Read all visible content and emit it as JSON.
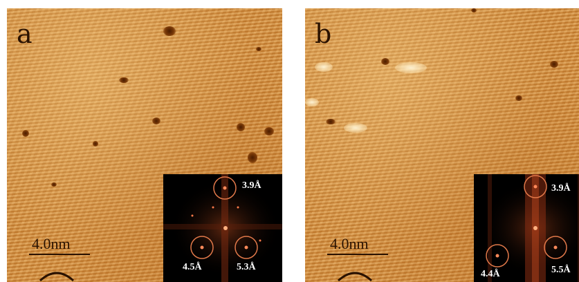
{
  "panels": [
    {
      "label": "a",
      "scale_bar": "4.0nm",
      "fft_labels": [
        "3.9Å",
        "4.5Å",
        "5.3Å"
      ]
    },
    {
      "label": "b",
      "scale_bar": "4.0nm",
      "fft_labels": [
        "3.9Å",
        "4.4Å",
        "5.5Å"
      ]
    }
  ],
  "colors": {
    "surface": "#d48c3a",
    "defect": "#4a1c00",
    "fft_background": "#000000",
    "fft_circle": "#e2794a",
    "label_text": "#2a1200"
  }
}
